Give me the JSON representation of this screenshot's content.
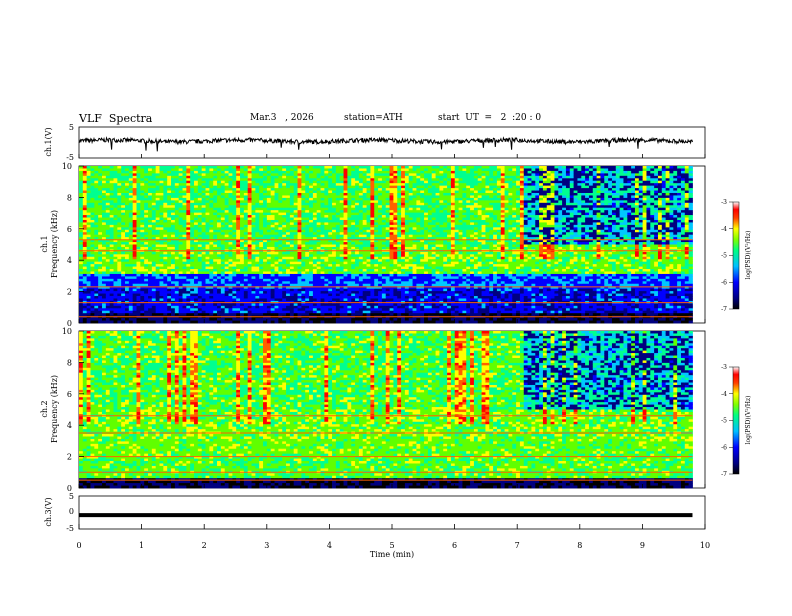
{
  "header": {
    "title": "VLF  Spectra",
    "date": "Mar.3   , 2026",
    "station": "station=ATH",
    "start_ut": "start  UT  =   2  :20 : 0"
  },
  "chart_data": [
    {
      "type": "line",
      "ylabel": "ch.1(V)",
      "ylim": [
        -5,
        5
      ],
      "yticks": [
        "5",
        "-5"
      ],
      "xlim": [
        0,
        10
      ],
      "description_trace": "noisy waveform near +0.5 V"
    },
    {
      "type": "heatmap",
      "ylabel": "ch.1\nFrequency  (kHz)",
      "ylabel_lines": [
        "ch.1",
        "Frequency  (kHz)"
      ],
      "ylim": [
        0,
        10
      ],
      "yticks": [
        "0",
        "2",
        "4",
        "6",
        "8",
        "10"
      ],
      "xlim": [
        0,
        9.8
      ],
      "colorbar": {
        "label": "log(PSD)(V²/Hz)",
        "range": [
          -7,
          -3
        ],
        "ticks": [
          "-3",
          "-4",
          "-5",
          "-6",
          "-7"
        ]
      }
    },
    {
      "type": "heatmap",
      "ylabel_lines": [
        "ch.2",
        "Frequency  (kHz)"
      ],
      "ylim": [
        0,
        10
      ],
      "yticks": [
        "0",
        "2",
        "4",
        "6",
        "8",
        "10"
      ],
      "xlim": [
        0,
        9.8
      ],
      "colorbar": {
        "label": "log(PSD)(V²/Hz)",
        "range": [
          -7,
          -3
        ],
        "ticks": [
          "-3",
          "-4",
          "-5",
          "-6",
          "-7"
        ]
      }
    },
    {
      "type": "line",
      "ylabel": "ch.3(V)",
      "ylim": [
        -5,
        5
      ],
      "yticks": [
        "5",
        "0",
        "-5"
      ],
      "xlim": [
        0,
        10
      ],
      "trace_value": -0.8
    }
  ],
  "xaxis": {
    "label": "Time  (min)",
    "ticks": [
      "0",
      "1",
      "2",
      "3",
      "4",
      "5",
      "6",
      "7",
      "8",
      "9",
      "10"
    ],
    "range": [
      0,
      10
    ]
  },
  "colors": {
    "scale": [
      "#000080",
      "#0000ff",
      "#00a0ff",
      "#00ffff",
      "#00ff80",
      "#80ff00",
      "#ffff00",
      "#ff8000",
      "#ff0000",
      "#ffffff"
    ]
  }
}
